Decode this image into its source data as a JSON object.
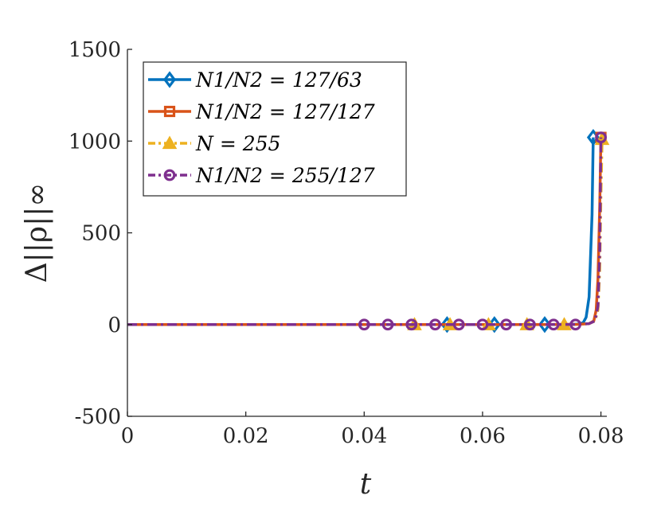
{
  "chart_data": {
    "type": "line",
    "xlabel": "t",
    "ylabel": "Δ||ρ||∞",
    "xlim": [
      0,
      0.081
    ],
    "ylim": [
      -500,
      1500
    ],
    "xticks": [
      0,
      0.02,
      0.04,
      0.06,
      0.08
    ],
    "xtick_labels": [
      "0",
      "0.02",
      "0.04",
      "0.06",
      "0.08"
    ],
    "yticks": [
      -500,
      0,
      500,
      1000,
      1500
    ],
    "ytick_labels": [
      "-500",
      "0",
      "500",
      "1000",
      "1500"
    ],
    "grid": false,
    "legend_position": "top-left",
    "series": [
      {
        "name": "N1/N2 = 127/63",
        "color": "#0072BD",
        "marker": "diamond",
        "dash": "solid",
        "x": [
          0,
          0.01,
          0.02,
          0.03,
          0.04,
          0.05,
          0.054,
          0.062,
          0.07,
          0.0745,
          0.076,
          0.077,
          0.0775,
          0.078,
          0.0785,
          0.0787
        ],
        "y": [
          0,
          0,
          0,
          0,
          0,
          0,
          0,
          0,
          0,
          0,
          2,
          10,
          40,
          150,
          600,
          1020
        ],
        "marker_x": [
          0.054,
          0.062,
          0.0705,
          0.0787
        ],
        "marker_y": [
          0,
          0,
          0,
          1020
        ]
      },
      {
        "name": "N1/N2 = 127/127",
        "color": "#D95319",
        "marker": "square",
        "dash": "solid",
        "x": [
          0,
          0.01,
          0.02,
          0.03,
          0.04,
          0.05,
          0.06,
          0.07,
          0.076,
          0.078,
          0.0788,
          0.0792,
          0.0795,
          0.0798,
          0.08
        ],
        "y": [
          0,
          0,
          0,
          0,
          0,
          0,
          0,
          0,
          1,
          5,
          20,
          80,
          250,
          650,
          1020
        ],
        "marker_x": [
          0.08
        ],
        "marker_y": [
          1020
        ]
      },
      {
        "name": "N = 255",
        "color": "#EDB120",
        "marker": "triangle",
        "dash": "dashdot",
        "x": [
          0,
          0.01,
          0.02,
          0.03,
          0.04,
          0.05,
          0.06,
          0.07,
          0.076,
          0.078,
          0.079,
          0.0795,
          0.0798,
          0.08,
          0.0802
        ],
        "y": [
          0,
          0,
          0,
          0,
          0,
          0,
          0,
          0,
          1,
          5,
          20,
          80,
          300,
          700,
          1010
        ],
        "marker_x": [
          0.0485,
          0.0545,
          0.061,
          0.0675,
          0.0738,
          0.0802
        ],
        "marker_y": [
          0,
          0,
          0,
          0,
          0,
          1010
        ]
      },
      {
        "name": "N1/N2 = 255/127",
        "color": "#7E2F8E",
        "marker": "circle",
        "dash": "dashdot",
        "x": [
          0,
          0.01,
          0.02,
          0.03,
          0.04,
          0.05,
          0.06,
          0.07,
          0.0757,
          0.078,
          0.079,
          0.0795,
          0.0798,
          0.08
        ],
        "y": [
          0,
          0,
          0,
          0,
          0,
          0,
          0,
          0,
          1,
          5,
          20,
          100,
          400,
          1020
        ],
        "marker_x": [
          0.04,
          0.044,
          0.048,
          0.052,
          0.056,
          0.06,
          0.064,
          0.068,
          0.072,
          0.0757,
          0.08
        ],
        "marker_y": [
          0,
          0,
          0,
          0,
          0,
          0,
          0,
          0,
          0,
          0,
          1020
        ]
      }
    ]
  }
}
